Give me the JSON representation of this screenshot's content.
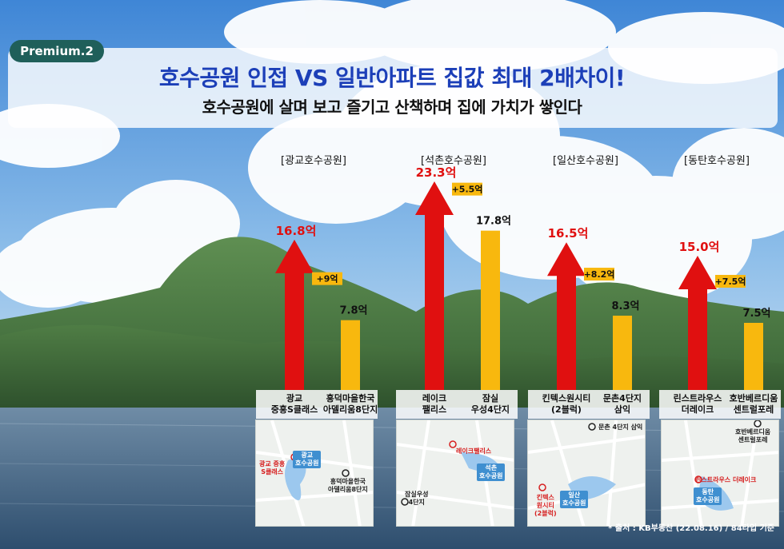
{
  "badge": "Premium.2",
  "title": "호수공원 인접 VS 일반아파트 집값 최대 2배차이!",
  "subtitle": "호수공원에 살며 보고 즐기고 산책하며 집에 가치가 쌓인다",
  "source": "* 출처 : KB부동산 (22.08.16) / 84타입 기준",
  "colors": {
    "lake_arrow": "#e01010",
    "regular_bar": "#f8b80e",
    "value_red": "#e01010",
    "title_blue": "#1c3fb8",
    "badge_green": "#1f5f5a"
  },
  "chart_data": {
    "type": "bar",
    "title": "",
    "xlabel": "",
    "ylabel": "",
    "ylim": [
      0,
      25
    ],
    "series": [
      {
        "name": "",
        "values": [
          16.8,
          23.3,
          16.5,
          15.0
        ]
      },
      {
        "name": "",
        "values": [
          7.8,
          17.8,
          8.3,
          7.5
        ]
      }
    ],
    "groups": [
      {
        "park": "[광교호수공원]",
        "lake_apt": "광교\n중흥S클래스",
        "lake_value": 16.8,
        "lake_label": "16.8억",
        "regular_apt": "흥덕마을한국\n아델리움8단지",
        "regular_value": 7.8,
        "regular_label": "7.8억",
        "diff_label": "+9억"
      },
      {
        "park": "[석촌호수공원]",
        "lake_apt": "레이크\n팰리스",
        "lake_value": 23.3,
        "lake_label": "23.3억",
        "regular_apt": "잠실\n우성4단지",
        "regular_value": 17.8,
        "regular_label": "17.8억",
        "diff_label": "+5.5억"
      },
      {
        "park": "[일산호수공원]",
        "lake_apt": "킨텍스원시티\n(2블럭)",
        "lake_value": 16.5,
        "lake_label": "16.5억",
        "regular_apt": "문촌4단지\n삼익",
        "regular_value": 8.3,
        "regular_label": "8.3억",
        "diff_label": "+8.2억"
      },
      {
        "park": "[동탄호수공원]",
        "lake_apt": "린스트라우스\n더레이크",
        "lake_value": 15.0,
        "lake_label": "15.0억",
        "regular_apt": "호반베르디움\n센트럴포레",
        "regular_value": 7.5,
        "regular_label": "7.5억",
        "diff_label": "+7.5억"
      }
    ]
  },
  "maps": [
    {
      "labels": [
        {
          "text": "광교\n호수공원",
          "style": "water"
        },
        {
          "text": "광교 중흥\nS클래스",
          "style": "red"
        },
        {
          "text": "흥덕마을한국\n아델리움8단지",
          "style": "dark"
        }
      ]
    },
    {
      "labels": [
        {
          "text": "레이크팰리스",
          "style": "red"
        },
        {
          "text": "석촌\n호수공원",
          "style": "water"
        },
        {
          "text": "잠실우성\n4단지",
          "style": "dark"
        }
      ]
    },
    {
      "labels": [
        {
          "text": "문촌 4단지 삼익",
          "style": "dark"
        },
        {
          "text": "일산\n호수공원",
          "style": "water"
        },
        {
          "text": "킨텍스\n원시티\n(2블럭)",
          "style": "red"
        }
      ]
    },
    {
      "labels": [
        {
          "text": "호반베르디움\n센트럴포레",
          "style": "dark"
        },
        {
          "text": "린스트라우스 더레이크",
          "style": "red"
        },
        {
          "text": "동탄\n호수공원",
          "style": "water"
        }
      ]
    }
  ]
}
